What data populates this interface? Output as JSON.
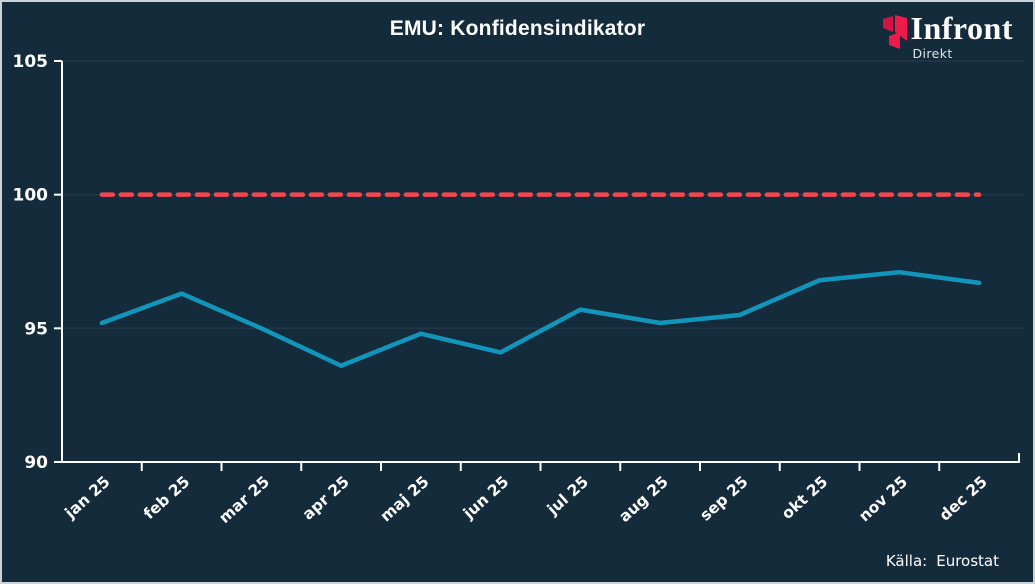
{
  "header": {
    "title": "EMU: Konfidensindikator"
  },
  "logo": {
    "name": "Infront",
    "sub": "Direkt",
    "brand_red": "#ee1a4c",
    "brand_red_dark": "#d41343"
  },
  "source": {
    "label": "Källa:",
    "value": "Eurostat"
  },
  "colors": {
    "background": "#142b3c",
    "frame_border": "#ccd2d6",
    "axis": "#ffffff",
    "gridline": "rgba(255,255,255,0.06)",
    "series_teal": "#1295ba",
    "reference_red": "#f4464d"
  },
  "chart_data": {
    "type": "line",
    "title": "EMU: Konfidensindikator",
    "categories": [
      "jan 25",
      "feb 25",
      "mar 25",
      "apr 25",
      "maj 25",
      "jun 25",
      "jul 25",
      "aug 25",
      "sep 25",
      "okt 25",
      "nov 25",
      "dec 25"
    ],
    "series": [
      {
        "name": "Konfidensindikator",
        "color": "#1295ba",
        "values": [
          95.2,
          96.3,
          95.0,
          93.6,
          94.8,
          94.1,
          95.7,
          95.2,
          95.5,
          96.8,
          97.1,
          96.7
        ]
      }
    ],
    "reference_line": {
      "value": 100,
      "color": "#f4464d",
      "style": "dashed"
    },
    "ylim": [
      90,
      105
    ],
    "yticks": [
      90,
      95,
      100,
      105
    ],
    "grid": true,
    "legend": "none",
    "source_note": "Källa: Eurostat"
  }
}
